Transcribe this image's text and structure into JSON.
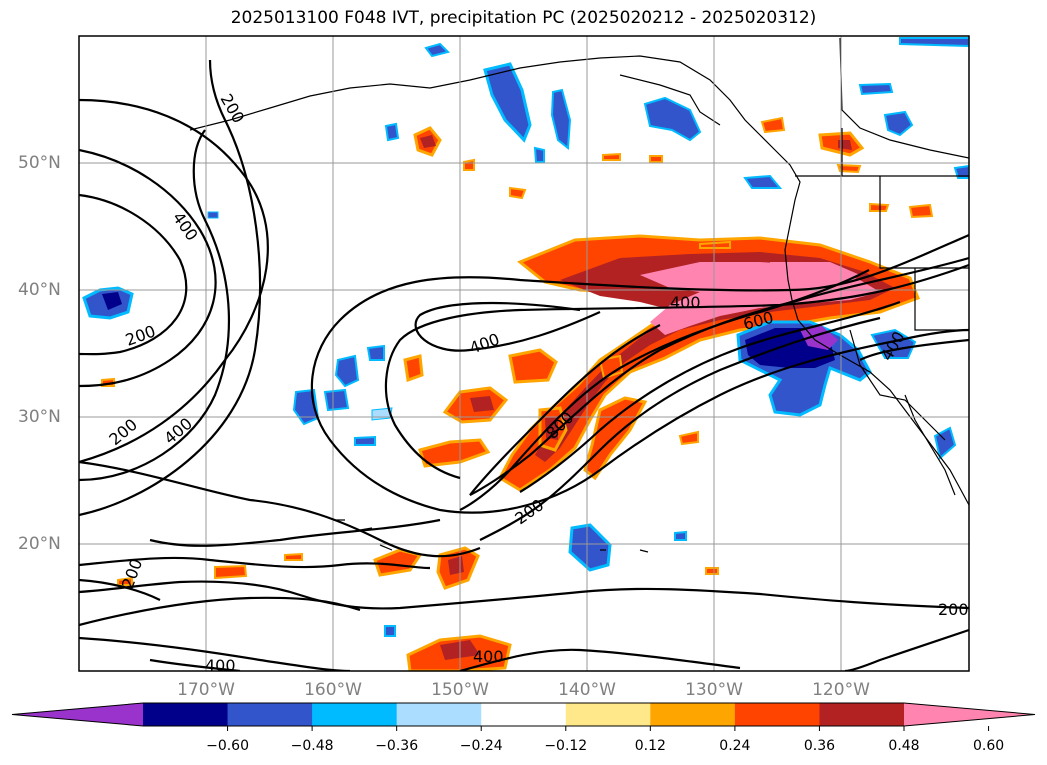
{
  "title": "2025013100 F048 IVT, precipitation PC (2025020212 - 2025020312)",
  "lat_labels": [
    "50°N",
    "40°N",
    "30°N",
    "20°N"
  ],
  "lon_labels": [
    "170°W",
    "160°W",
    "150°W",
    "140°W",
    "130°W",
    "120°W"
  ],
  "contour_labels": {
    "c1": "200",
    "c2": "400",
    "c3": "200",
    "c4": "200",
    "c5": "400",
    "c6": "200",
    "c7": "400",
    "c8": "400",
    "c9": "600",
    "c10": "800",
    "c11": "200",
    "c12": "400",
    "c13": "400",
    "c14": "200",
    "c15": "400",
    "c16": "200"
  },
  "colorbar": {
    "ticks": [
      "−0.60",
      "−0.48",
      "−0.36",
      "−0.24",
      "−0.12",
      "0.12",
      "0.24",
      "0.36",
      "0.48",
      "0.60"
    ],
    "colors": [
      "#9933cc",
      "#00008b",
      "#3355cc",
      "#00bbff",
      "#aaddff",
      "#ffffff",
      "#ffe88a",
      "#ffa500",
      "#ff4400",
      "#b22222",
      "#ff85b0"
    ]
  },
  "map_extent": {
    "lon_min": -180,
    "lon_max": -110,
    "lat_min": 10,
    "lat_max": 60
  }
}
